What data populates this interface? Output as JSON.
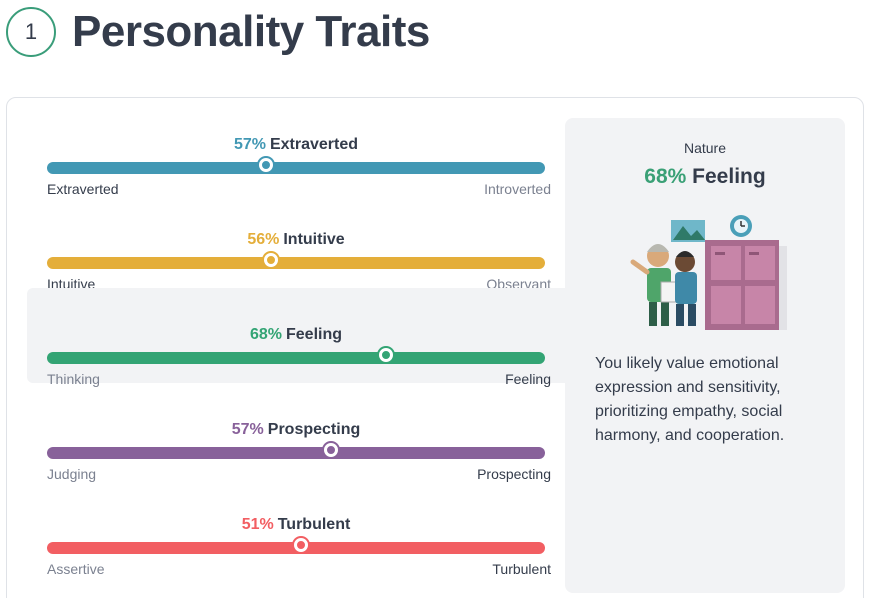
{
  "header": {
    "step_number": "1",
    "title": "Personality Traits"
  },
  "traits": [
    {
      "percent": "57%",
      "name": "Extraverted",
      "left_label": "Extraverted",
      "right_label": "Introverted",
      "value": 0.44,
      "color": "#4298b4",
      "left_muted": false,
      "right_muted": true,
      "highlighted": false
    },
    {
      "percent": "56%",
      "name": "Intuitive",
      "left_label": "Intuitive",
      "right_label": "Observant",
      "value": 0.45,
      "color": "#e4ae3a",
      "left_muted": false,
      "right_muted": true,
      "highlighted": false
    },
    {
      "percent": "68%",
      "name": "Feeling",
      "left_label": "Thinking",
      "right_label": "Feeling",
      "value": 0.68,
      "color": "#33a474",
      "left_muted": true,
      "right_muted": false,
      "highlighted": true
    },
    {
      "percent": "57%",
      "name": "Prospecting",
      "left_label": "Judging",
      "right_label": "Prospecting",
      "value": 0.57,
      "color": "#88619a",
      "left_muted": true,
      "right_muted": false,
      "highlighted": false
    },
    {
      "percent": "51%",
      "name": "Turbulent",
      "left_label": "Assertive",
      "right_label": "Turbulent",
      "value": 0.51,
      "color": "#f25e62",
      "left_muted": true,
      "right_muted": false,
      "highlighted": false
    }
  ],
  "side_panel": {
    "caption": "Nature",
    "result_percent": "68%",
    "result_name": "Feeling",
    "illustration": "nature-feeling-illustration",
    "description": "You likely value emotional expression and sensitivity, prioritizing empathy, social harmony, and cooperation."
  }
}
